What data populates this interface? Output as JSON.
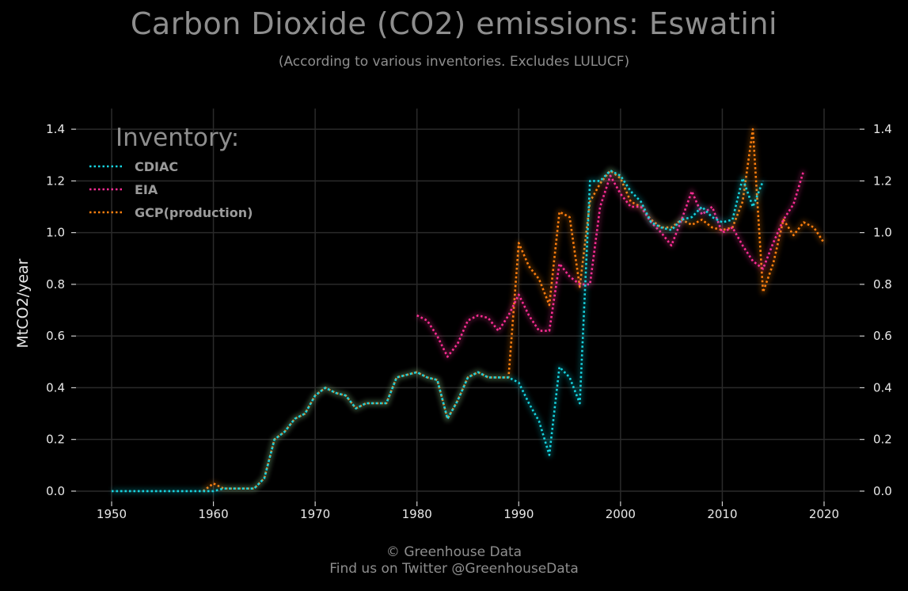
{
  "chart_data": {
    "type": "line",
    "title": "Carbon Dioxide (CO2) emissions: Eswatini",
    "subtitle": "(According to various inventories. Excludes LULUCF)",
    "ylabel": "MtCO2/year",
    "xlabel": "",
    "xlim": [
      1946.5,
      2023.5
    ],
    "ylim": [
      -0.04,
      1.48
    ],
    "xticks": [
      1950,
      1960,
      1970,
      1980,
      1990,
      2000,
      2010,
      2020
    ],
    "xtick_labels": [
      "1950",
      "1960",
      "1970",
      "1980",
      "1990",
      "2000",
      "2010",
      "2020"
    ],
    "yticks": [
      0.0,
      0.2,
      0.4,
      0.6,
      0.8,
      1.0,
      1.2,
      1.4
    ],
    "ytick_labels": [
      "0.0",
      "0.2",
      "0.4",
      "0.6",
      "0.8",
      "1.0",
      "1.2",
      "1.4"
    ],
    "grid": true,
    "legend_title": "Inventory:",
    "legend_position": "top-left",
    "series": [
      {
        "name": "GCP(production)",
        "color": "#ff7f0e",
        "x": [
          1959,
          1960,
          1961,
          1962,
          1963,
          1964,
          1965,
          1966,
          1967,
          1968,
          1969,
          1970,
          1971,
          1972,
          1973,
          1974,
          1975,
          1976,
          1977,
          1978,
          1979,
          1980,
          1981,
          1982,
          1983,
          1984,
          1985,
          1986,
          1987,
          1988,
          1989,
          1990,
          1991,
          1992,
          1993,
          1994,
          1995,
          1996,
          1997,
          1998,
          1999,
          2000,
          2001,
          2002,
          2003,
          2004,
          2005,
          2006,
          2007,
          2008,
          2009,
          2010,
          2011,
          2012,
          2013,
          2014,
          2015,
          2016,
          2017,
          2018,
          2019,
          2020
        ],
        "values": [
          0.0,
          0.03,
          0.01,
          0.01,
          0.01,
          0.01,
          0.05,
          0.2,
          0.23,
          0.28,
          0.3,
          0.37,
          0.4,
          0.38,
          0.37,
          0.32,
          0.34,
          0.34,
          0.34,
          0.44,
          0.45,
          0.46,
          0.44,
          0.43,
          0.28,
          0.35,
          0.44,
          0.46,
          0.44,
          0.44,
          0.44,
          0.96,
          0.87,
          0.82,
          0.72,
          1.08,
          1.06,
          0.79,
          1.12,
          1.19,
          1.24,
          1.21,
          1.12,
          1.1,
          1.05,
          1.02,
          1.02,
          1.05,
          1.03,
          1.05,
          1.02,
          1.01,
          1.02,
          1.12,
          1.4,
          0.77,
          0.88,
          1.05,
          0.99,
          1.04,
          1.02,
          0.96
        ]
      },
      {
        "name": "EIA",
        "color": "#ff2d95",
        "x": [
          1980,
          1981,
          1982,
          1983,
          1984,
          1985,
          1986,
          1987,
          1988,
          1989,
          1990,
          1991,
          1992,
          1993,
          1994,
          1995,
          1996,
          1997,
          1998,
          1999,
          2000,
          2001,
          2002,
          2003,
          2004,
          2005,
          2006,
          2007,
          2008,
          2009,
          2010,
          2011,
          2012,
          2013,
          2014,
          2015,
          2016,
          2017,
          2018
        ],
        "values": [
          0.68,
          0.66,
          0.6,
          0.52,
          0.57,
          0.66,
          0.68,
          0.67,
          0.62,
          0.68,
          0.76,
          0.68,
          0.62,
          0.62,
          0.88,
          0.83,
          0.8,
          0.8,
          1.1,
          1.22,
          1.15,
          1.1,
          1.1,
          1.04,
          1.0,
          0.95,
          1.05,
          1.16,
          1.07,
          1.1,
          1.0,
          1.02,
          0.95,
          0.89,
          0.86,
          0.96,
          1.05,
          1.11,
          1.24
        ]
      },
      {
        "name": "CDIAC",
        "color": "#17d3e0",
        "x": [
          1950,
          1951,
          1952,
          1953,
          1954,
          1955,
          1956,
          1957,
          1958,
          1959,
          1960,
          1961,
          1962,
          1963,
          1964,
          1965,
          1966,
          1967,
          1968,
          1969,
          1970,
          1971,
          1972,
          1973,
          1974,
          1975,
          1976,
          1977,
          1978,
          1979,
          1980,
          1981,
          1982,
          1983,
          1984,
          1985,
          1986,
          1987,
          1988,
          1989,
          1990,
          1991,
          1992,
          1993,
          1994,
          1995,
          1996,
          1997,
          1998,
          1999,
          2000,
          2001,
          2002,
          2003,
          2004,
          2005,
          2006,
          2007,
          2008,
          2009,
          2010,
          2011,
          2012,
          2013,
          2014
        ],
        "values": [
          0.0,
          0.0,
          0.0,
          0.0,
          0.0,
          0.0,
          0.0,
          0.0,
          0.0,
          0.0,
          0.0,
          0.01,
          0.01,
          0.01,
          0.01,
          0.05,
          0.2,
          0.23,
          0.28,
          0.3,
          0.37,
          0.4,
          0.38,
          0.37,
          0.32,
          0.34,
          0.34,
          0.34,
          0.44,
          0.45,
          0.46,
          0.44,
          0.43,
          0.28,
          0.35,
          0.44,
          0.46,
          0.44,
          0.44,
          0.44,
          0.42,
          0.34,
          0.27,
          0.14,
          0.48,
          0.44,
          0.34,
          1.2,
          1.2,
          1.24,
          1.22,
          1.16,
          1.12,
          1.04,
          1.02,
          1.01,
          1.05,
          1.06,
          1.1,
          1.06,
          1.04,
          1.05,
          1.21,
          1.1,
          1.2
        ]
      }
    ],
    "legend_order": [
      "CDIAC",
      "EIA",
      "GCP(production)"
    ]
  },
  "footer": {
    "line1": "© Greenhouse Data",
    "line2": "Find us on Twitter @GreenhouseData"
  },
  "colors": {
    "background": "#000000",
    "grid": "#2a2a2a",
    "text": "#e8e8e8",
    "muted": "#8e8e8e"
  }
}
